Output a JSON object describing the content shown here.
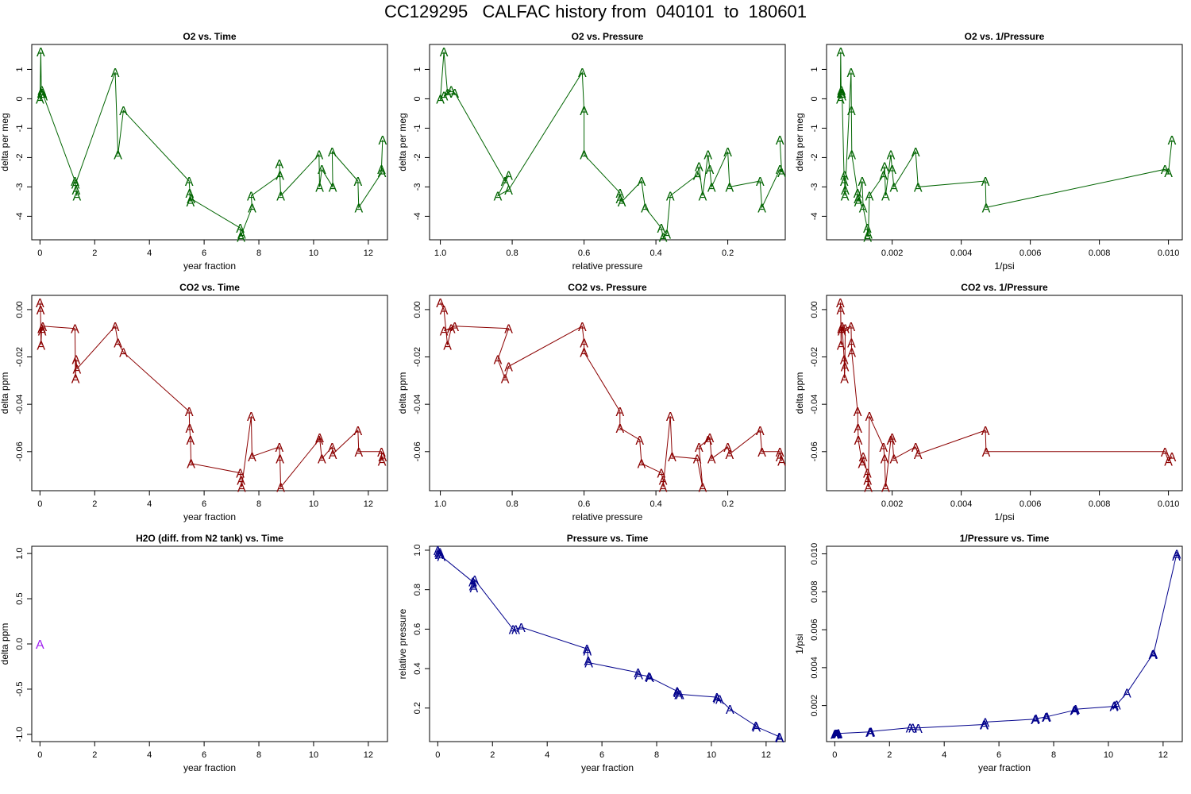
{
  "page_title": "CC129295   CALFAC history from  040101  to  180601",
  "chart_data": [
    {
      "type": "line",
      "title": "O2 vs. Time",
      "xlabel": "year fraction",
      "ylabel": "delta per meg",
      "xlim": [
        -0.3,
        12.7
      ],
      "ylim": [
        -4.8,
        1.85
      ],
      "x_reversed": false,
      "xticks": [
        0,
        2,
        4,
        6,
        8,
        10,
        12
      ],
      "xtick_labels": [
        "0",
        "2",
        "4",
        "6",
        "8",
        "10",
        "12"
      ],
      "yticks": [
        -4,
        -3,
        -2,
        -1,
        0,
        1
      ],
      "ytick_labels": [
        "-4",
        "-3",
        "-2",
        "-1",
        "0",
        "1"
      ],
      "color": "#006400",
      "marker": "A",
      "x": [
        0.0,
        0.03,
        0.05,
        0.07,
        0.1,
        0.13,
        1.28,
        1.3,
        1.32,
        1.35,
        2.75,
        2.85,
        3.05,
        5.45,
        5.47,
        5.5,
        5.52,
        7.32,
        7.35,
        7.37,
        7.72,
        7.75,
        8.75,
        8.77,
        8.8,
        10.2,
        10.22,
        10.3,
        10.68,
        10.7,
        11.62,
        11.65,
        12.48,
        12.5,
        12.52
      ],
      "y": [
        0.0,
        1.6,
        0.2,
        0.3,
        0.2,
        0.1,
        -2.8,
        -2.9,
        -3.1,
        -3.3,
        0.9,
        -1.9,
        -0.4,
        -2.8,
        -3.2,
        -3.5,
        -3.4,
        -4.4,
        -4.7,
        -4.6,
        -3.3,
        -3.7,
        -2.2,
        -2.6,
        -3.3,
        -1.9,
        -3.0,
        -2.4,
        -1.8,
        -3.0,
        -2.8,
        -3.7,
        -2.4,
        -2.5,
        -1.4
      ],
      "path_order": [
        0,
        1,
        2,
        3,
        4,
        5,
        6,
        9,
        8,
        7,
        10,
        11,
        12,
        13,
        15,
        14,
        16,
        17,
        18,
        19,
        21,
        20,
        23,
        22,
        24,
        25,
        26,
        27,
        29,
        28,
        30,
        31,
        33,
        32,
        34
      ]
    },
    {
      "type": "line",
      "title": "O2 vs. Pressure",
      "xlabel": "relative pressure",
      "ylabel": "delta per meg",
      "xlim": [
        1.03,
        0.04
      ],
      "ylim": [
        -4.8,
        1.85
      ],
      "x_reversed": true,
      "xticks": [
        1.0,
        0.8,
        0.6,
        0.4,
        0.2
      ],
      "xtick_labels": [
        "1.0",
        "0.8",
        "0.6",
        "0.4",
        "0.2"
      ],
      "yticks": [
        -4,
        -3,
        -2,
        -1,
        0,
        1
      ],
      "ytick_labels": [
        "-4",
        "-3",
        "-2",
        "-1",
        "0",
        "1"
      ],
      "color": "#006400",
      "marker": "A",
      "x": [
        1.0,
        0.99,
        0.98,
        0.97,
        0.99,
        0.96,
        0.82,
        0.81,
        0.84,
        0.81,
        0.605,
        0.6,
        0.6,
        0.5,
        0.5,
        0.495,
        0.44,
        0.43,
        0.385,
        0.38,
        0.37,
        0.36,
        0.285,
        0.28,
        0.27,
        0.255,
        0.25,
        0.245,
        0.2,
        0.195,
        0.11,
        0.105,
        0.055,
        0.05,
        0.055
      ],
      "y": [
        0.0,
        1.6,
        0.2,
        0.3,
        0.1,
        0.2,
        -2.8,
        -2.6,
        -3.3,
        -3.1,
        0.9,
        -0.4,
        -1.9,
        -3.2,
        -3.4,
        -3.5,
        -2.8,
        -3.7,
        -4.4,
        -4.7,
        -4.6,
        -3.3,
        -2.6,
        -2.3,
        -3.3,
        -1.9,
        -2.4,
        -3.0,
        -1.8,
        -3.0,
        -2.8,
        -3.7,
        -2.4,
        -2.5,
        -1.4
      ],
      "path_order": [
        0,
        1,
        2,
        3,
        4,
        5,
        6,
        7,
        8,
        9,
        10,
        11,
        12,
        13,
        14,
        15,
        16,
        17,
        18,
        19,
        20,
        21,
        22,
        23,
        24,
        25,
        26,
        27,
        28,
        29,
        30,
        31,
        32,
        33,
        34
      ]
    },
    {
      "type": "line",
      "title": "O2 vs. 1/Pressure",
      "xlabel": "1/psi",
      "ylabel": "delta per meg",
      "xlim": [
        0.0001,
        0.0104
      ],
      "ylim": [
        -4.8,
        1.85
      ],
      "x_reversed": false,
      "xticks": [
        0.002,
        0.004,
        0.006,
        0.008,
        0.01
      ],
      "xtick_labels": [
        "0.002",
        "0.004",
        "0.006",
        "0.008",
        "0.010"
      ],
      "yticks": [
        -4,
        -3,
        -2,
        -1,
        0,
        1
      ],
      "ytick_labels": [
        "-4",
        "-3",
        "-2",
        "-1",
        "0",
        "1"
      ],
      "color": "#006400",
      "marker": "A",
      "x": [
        0.0005,
        0.00051,
        0.00052,
        0.00053,
        0.00054,
        0.00055,
        0.00061,
        0.00062,
        0.00063,
        0.00064,
        0.00081,
        0.00082,
        0.00083,
        0.001,
        0.00101,
        0.00102,
        0.00113,
        0.00116,
        0.00128,
        0.00129,
        0.00131,
        0.00134,
        0.00175,
        0.00178,
        0.00181,
        0.00196,
        0.002,
        0.00205,
        0.00268,
        0.00275,
        0.0047,
        0.00472,
        0.0099,
        0.01,
        0.0101
      ],
      "y": [
        0.0,
        1.6,
        0.2,
        0.3,
        0.2,
        0.1,
        -2.8,
        -2.6,
        -3.3,
        -3.1,
        0.9,
        -0.4,
        -1.9,
        -3.2,
        -3.4,
        -3.5,
        -2.8,
        -3.7,
        -4.4,
        -4.7,
        -4.6,
        -3.3,
        -2.6,
        -2.3,
        -3.3,
        -1.9,
        -2.4,
        -3.0,
        -1.8,
        -3.0,
        -2.8,
        -3.7,
        -2.4,
        -2.5,
        -1.4
      ],
      "path_order": [
        0,
        1,
        2,
        3,
        4,
        5,
        6,
        7,
        8,
        9,
        10,
        11,
        12,
        13,
        14,
        15,
        16,
        17,
        18,
        19,
        20,
        21,
        22,
        23,
        24,
        25,
        26,
        27,
        28,
        29,
        30,
        31,
        32,
        33,
        34
      ]
    },
    {
      "type": "line",
      "title": "CO2 vs. Time",
      "xlabel": "year fraction",
      "ylabel": "delta ppm",
      "xlim": [
        -0.3,
        12.7
      ],
      "ylim": [
        -0.0765,
        0.006
      ],
      "x_reversed": false,
      "xticks": [
        0,
        2,
        4,
        6,
        8,
        10,
        12
      ],
      "xtick_labels": [
        "0",
        "2",
        "4",
        "6",
        "8",
        "10",
        "12"
      ],
      "yticks": [
        -0.06,
        -0.04,
        -0.02,
        0.0
      ],
      "ytick_labels": [
        "-0.06",
        "-0.04",
        "-0.02",
        "0.00"
      ],
      "color": "#8b0000",
      "marker": "A",
      "x": [
        0.0,
        0.02,
        0.04,
        0.06,
        0.08,
        0.1,
        1.28,
        1.3,
        1.32,
        1.35,
        2.75,
        2.85,
        3.05,
        5.45,
        5.47,
        5.5,
        5.52,
        7.32,
        7.35,
        7.37,
        7.72,
        7.75,
        8.75,
        8.77,
        8.8,
        10.2,
        10.22,
        10.3,
        10.68,
        10.7,
        11.62,
        11.65,
        12.48,
        12.5,
        12.52
      ],
      "y": [
        0.003,
        0.0,
        -0.015,
        -0.008,
        -0.009,
        -0.007,
        -0.008,
        -0.029,
        -0.021,
        -0.025,
        -0.007,
        -0.014,
        -0.018,
        -0.043,
        -0.05,
        -0.055,
        -0.065,
        -0.069,
        -0.072,
        -0.075,
        -0.045,
        -0.062,
        -0.058,
        -0.063,
        -0.075,
        -0.055,
        -0.054,
        -0.063,
        -0.058,
        -0.061,
        -0.051,
        -0.06,
        -0.06,
        -0.064,
        -0.062
      ],
      "path_order": [
        0,
        1,
        2,
        3,
        4,
        5,
        6,
        7,
        8,
        9,
        10,
        11,
        12,
        13,
        14,
        15,
        16,
        17,
        18,
        19,
        20,
        21,
        22,
        23,
        24,
        25,
        26,
        27,
        28,
        29,
        30,
        31,
        32,
        33,
        34
      ]
    },
    {
      "type": "line",
      "title": "CO2 vs. Pressure",
      "xlabel": "relative pressure",
      "ylabel": "delta ppm",
      "xlim": [
        1.03,
        0.04
      ],
      "ylim": [
        -0.0765,
        0.006
      ],
      "x_reversed": true,
      "xticks": [
        1.0,
        0.8,
        0.6,
        0.4,
        0.2
      ],
      "xtick_labels": [
        "1.0",
        "0.8",
        "0.6",
        "0.4",
        "0.2"
      ],
      "yticks": [
        -0.06,
        -0.04,
        -0.02,
        0.0
      ],
      "ytick_labels": [
        "-0.06",
        "-0.04",
        "-0.02",
        "0.00"
      ],
      "color": "#8b0000",
      "marker": "A",
      "x": [
        1.0,
        0.99,
        0.98,
        0.97,
        0.99,
        0.96,
        0.81,
        0.82,
        0.84,
        0.81,
        0.605,
        0.6,
        0.6,
        0.5,
        0.5,
        0.445,
        0.44,
        0.385,
        0.38,
        0.38,
        0.36,
        0.355,
        0.285,
        0.27,
        0.28,
        0.255,
        0.25,
        0.245,
        0.2,
        0.195,
        0.11,
        0.105,
        0.055,
        0.05,
        0.055
      ],
      "y": [
        0.003,
        0.0,
        -0.015,
        -0.008,
        -0.009,
        -0.007,
        -0.008,
        -0.029,
        -0.021,
        -0.024,
        -0.007,
        -0.014,
        -0.018,
        -0.043,
        -0.05,
        -0.055,
        -0.065,
        -0.069,
        -0.072,
        -0.075,
        -0.045,
        -0.062,
        -0.063,
        -0.075,
        -0.058,
        -0.055,
        -0.054,
        -0.063,
        -0.058,
        -0.061,
        -0.051,
        -0.06,
        -0.06,
        -0.064,
        -0.062
      ],
      "path_order": [
        0,
        1,
        2,
        3,
        4,
        5,
        6,
        8,
        7,
        9,
        10,
        11,
        12,
        13,
        14,
        15,
        16,
        17,
        18,
        19,
        20,
        21,
        22,
        23,
        24,
        25,
        26,
        27,
        28,
        29,
        30,
        31,
        32,
        33,
        34
      ]
    },
    {
      "type": "line",
      "title": "CO2 vs. 1/Pressure",
      "xlabel": "1/psi",
      "ylabel": "delta ppm",
      "xlim": [
        0.0001,
        0.0104
      ],
      "ylim": [
        -0.0765,
        0.006
      ],
      "x_reversed": false,
      "xticks": [
        0.002,
        0.004,
        0.006,
        0.008,
        0.01
      ],
      "xtick_labels": [
        "0.002",
        "0.004",
        "0.006",
        "0.008",
        "0.010"
      ],
      "yticks": [
        -0.06,
        -0.04,
        -0.02,
        0.0
      ],
      "ytick_labels": [
        "-0.06",
        "-0.04",
        "-0.02",
        "0.00"
      ],
      "color": "#8b0000",
      "marker": "A",
      "x": [
        0.0005,
        0.00051,
        0.00052,
        0.00053,
        0.00054,
        0.00055,
        0.00061,
        0.00062,
        0.00063,
        0.00064,
        0.00081,
        0.00082,
        0.00083,
        0.001,
        0.00101,
        0.00102,
        0.00113,
        0.00116,
        0.00128,
        0.00129,
        0.00131,
        0.00134,
        0.00175,
        0.00178,
        0.00181,
        0.00196,
        0.002,
        0.00205,
        0.00268,
        0.00275,
        0.0047,
        0.00472,
        0.0099,
        0.01,
        0.0101
      ],
      "y": [
        0.003,
        0.0,
        -0.015,
        -0.008,
        -0.009,
        -0.007,
        -0.021,
        -0.029,
        -0.024,
        -0.008,
        -0.007,
        -0.014,
        -0.018,
        -0.043,
        -0.05,
        -0.055,
        -0.065,
        -0.062,
        -0.069,
        -0.072,
        -0.075,
        -0.045,
        -0.058,
        -0.063,
        -0.075,
        -0.055,
        -0.054,
        -0.063,
        -0.058,
        -0.061,
        -0.051,
        -0.06,
        -0.06,
        -0.064,
        -0.062
      ],
      "path_order": [
        0,
        1,
        2,
        3,
        4,
        5,
        6,
        7,
        8,
        9,
        10,
        11,
        12,
        13,
        14,
        15,
        16,
        17,
        18,
        19,
        20,
        21,
        22,
        23,
        24,
        25,
        26,
        27,
        28,
        29,
        30,
        31,
        32,
        33,
        34
      ]
    },
    {
      "type": "scatter",
      "title": "H2O (diff. from N2 tank) vs. Time",
      "xlabel": "year fraction",
      "ylabel": "delta ppm",
      "xlim": [
        -0.3,
        12.7
      ],
      "ylim": [
        -1.08,
        1.08
      ],
      "x_reversed": false,
      "xticks": [
        0,
        2,
        4,
        6,
        8,
        10,
        12
      ],
      "xtick_labels": [
        "0",
        "2",
        "4",
        "6",
        "8",
        "10",
        "12"
      ],
      "yticks": [
        -1.0,
        -0.5,
        0.0,
        0.5,
        1.0
      ],
      "ytick_labels": [
        "-1.0",
        "-0.5",
        "0.0",
        "0.5",
        "1.0"
      ],
      "color": "#a020f0",
      "marker": "A",
      "x": [
        0.0
      ],
      "y": [
        0.0
      ],
      "path_order": []
    },
    {
      "type": "line",
      "title": "Pressure vs. Time",
      "xlabel": "year fraction",
      "ylabel": "relative pressure",
      "xlim": [
        -0.3,
        12.7
      ],
      "ylim": [
        0.03,
        1.02
      ],
      "x_reversed": false,
      "xticks": [
        0,
        2,
        4,
        6,
        8,
        10,
        12
      ],
      "xtick_labels": [
        "0",
        "2",
        "4",
        "6",
        "8",
        "10",
        "12"
      ],
      "yticks": [
        0.2,
        0.4,
        0.6,
        0.8,
        1.0
      ],
      "ytick_labels": [
        "0.2",
        "0.4",
        "0.6",
        "0.8",
        "1.0"
      ],
      "color": "#00008b",
      "marker": "A",
      "x": [
        0.0,
        0.03,
        0.05,
        0.08,
        0.1,
        0.13,
        1.28,
        1.3,
        1.32,
        1.35,
        2.75,
        2.85,
        3.05,
        5.45,
        5.47,
        5.5,
        5.52,
        7.32,
        7.35,
        7.72,
        7.75,
        8.75,
        8.77,
        8.8,
        8.85,
        10.2,
        10.22,
        10.3,
        10.68,
        11.62,
        11.65,
        12.48,
        12.5
      ],
      "y": [
        1.0,
        0.99,
        0.98,
        0.99,
        0.98,
        0.97,
        0.84,
        0.82,
        0.81,
        0.85,
        0.6,
        0.6,
        0.61,
        0.5,
        0.49,
        0.44,
        0.43,
        0.38,
        0.37,
        0.36,
        0.355,
        0.285,
        0.28,
        0.27,
        0.27,
        0.255,
        0.25,
        0.245,
        0.195,
        0.11,
        0.105,
        0.055,
        0.05
      ],
      "path_order": [
        0,
        1,
        2,
        3,
        4,
        5,
        6,
        7,
        8,
        9,
        10,
        11,
        12,
        13,
        14,
        15,
        16,
        17,
        18,
        19,
        20,
        21,
        22,
        23,
        24,
        25,
        26,
        27,
        28,
        29,
        30,
        31,
        32
      ]
    },
    {
      "type": "line",
      "title": "1/Pressure vs. Time",
      "xlabel": "year fraction",
      "ylabel": "1/psi",
      "xlim": [
        -0.3,
        12.7
      ],
      "ylim": [
        0.0001,
        0.0104
      ],
      "x_reversed": false,
      "xticks": [
        0,
        2,
        4,
        6,
        8,
        10,
        12
      ],
      "xtick_labels": [
        "0",
        "2",
        "4",
        "6",
        "8",
        "10",
        "12"
      ],
      "yticks": [
        0.002,
        0.004,
        0.006,
        0.008,
        0.01
      ],
      "ytick_labels": [
        "0.002",
        "0.004",
        "0.006",
        "0.008",
        "0.010"
      ],
      "color": "#00008b",
      "marker": "A",
      "x": [
        0.0,
        0.03,
        0.05,
        0.08,
        0.1,
        0.13,
        1.28,
        1.3,
        1.32,
        2.75,
        2.85,
        3.05,
        5.45,
        5.47,
        5.5,
        7.32,
        7.35,
        7.72,
        7.75,
        8.75,
        8.77,
        8.8,
        10.2,
        10.22,
        10.3,
        10.68,
        11.62,
        11.65,
        12.48,
        12.5
      ],
      "y": [
        0.0005,
        0.00051,
        0.00052,
        0.00051,
        0.00052,
        0.00053,
        0.00061,
        0.00062,
        0.00063,
        0.00083,
        0.00083,
        0.00082,
        0.001,
        0.00101,
        0.00113,
        0.00128,
        0.00131,
        0.0014,
        0.00141,
        0.00175,
        0.00178,
        0.00181,
        0.00196,
        0.002,
        0.00205,
        0.00268,
        0.0047,
        0.00472,
        0.0099,
        0.01
      ],
      "path_order": [
        0,
        1,
        2,
        3,
        4,
        5,
        6,
        7,
        8,
        9,
        10,
        11,
        12,
        13,
        14,
        15,
        16,
        17,
        18,
        19,
        20,
        21,
        22,
        23,
        24,
        25,
        26,
        27,
        28,
        29
      ]
    }
  ]
}
